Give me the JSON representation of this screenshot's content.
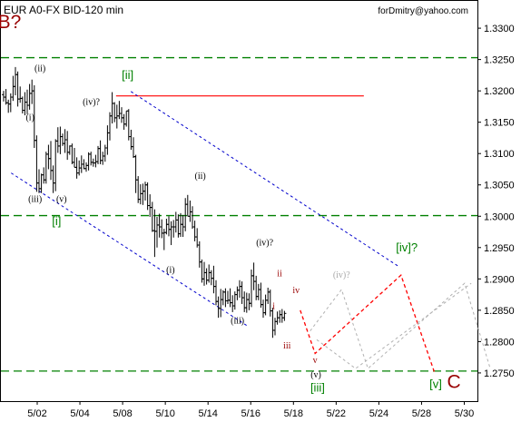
{
  "header": {
    "symbol_title": "EUR A0-FX BID-120 min",
    "author_credit": "forDmitry@yahoo.com"
  },
  "chart_data": {
    "type": "bar",
    "title": "EUR A0-FX BID-120 min",
    "ylim": [
      1.2705,
      1.3345
    ],
    "yticks": [
      "1.3300",
      "1.3250",
      "1.3200",
      "1.3150",
      "1.3100",
      "1.3050",
      "1.3000",
      "1.2950",
      "1.2900",
      "1.2850",
      "1.2800",
      "1.2750"
    ],
    "xticks": [
      "5/02",
      "5/04",
      "5/08",
      "5/10",
      "5/14",
      "5/16",
      "5/18",
      "5/22",
      "5/24",
      "5/28",
      "5/30"
    ],
    "colors": {
      "price_bars": "#000000",
      "support_lines": "#008000",
      "channel_lines": "#0000cc",
      "resistance_line": "#ff0000",
      "forecast_primary": "#ff0000",
      "forecast_alternates": "#b0b0b0",
      "wave_labels_green": "#008000",
      "wave_labels_dark_red": "#990000"
    },
    "levels": {
      "upper_support": 1.3253,
      "middle_support": 1.3001,
      "lower_support": 1.2753,
      "resistance": 1.3192
    },
    "wave_labels": [
      {
        "text": "B?",
        "x": 0.6,
        "y": 1.33,
        "color": "dark_red",
        "size": "large"
      },
      {
        "text": "(ii)",
        "x": 4.3,
        "y": 1.3231,
        "color": "black",
        "size": "small"
      },
      {
        "text": "(i)",
        "x": 3.1,
        "y": 1.3153,
        "color": "black",
        "size": "small"
      },
      {
        "text": "(iv)?",
        "x": 10.5,
        "y": 1.3178,
        "color": "black",
        "size": "small"
      },
      {
        "text": "(iii)",
        "x": 3.7,
        "y": 1.3023,
        "color": "black",
        "size": "small"
      },
      {
        "text": "(v)",
        "x": 6.9,
        "y": 1.3023,
        "color": "black",
        "size": "small"
      },
      {
        "text": "[i]",
        "x": 6.3,
        "y": 1.2986,
        "color": "green",
        "size": "medium"
      },
      {
        "text": "[ii]",
        "x": 14.9,
        "y": 1.3219,
        "color": "green",
        "size": "medium"
      },
      {
        "text": "(ii)",
        "x": 23.7,
        "y": 1.306,
        "color": "black",
        "size": "small"
      },
      {
        "text": "(i)",
        "x": 20.1,
        "y": 1.291,
        "color": "black",
        "size": "small"
      },
      {
        "text": "(iv)?",
        "x": 31.5,
        "y": 1.2953,
        "color": "black",
        "size": "small"
      },
      {
        "text": "(iii)",
        "x": 28.2,
        "y": 1.2829,
        "color": "black",
        "size": "small"
      },
      {
        "text": "ii",
        "x": 33.3,
        "y": 1.2904,
        "color": "dark_red",
        "size": "small"
      },
      {
        "text": "iv",
        "x": 35.3,
        "y": 1.2877,
        "color": "dark_red",
        "size": "small"
      },
      {
        "text": "i",
        "x": 32.6,
        "y": 1.2852,
        "color": "dark_red",
        "size": "small"
      },
      {
        "text": "iii",
        "x": 34.2,
        "y": 1.2789,
        "color": "dark_red",
        "size": "small"
      },
      {
        "text": "v",
        "x": 37.6,
        "y": 1.2766,
        "color": "dark_red",
        "size": "small"
      },
      {
        "text": "(v)",
        "x": 37.7,
        "y": 1.2743,
        "color": "black",
        "size": "small"
      },
      {
        "text": "[iii]",
        "x": 37.9,
        "y": 1.272,
        "color": "green",
        "size": "medium"
      },
      {
        "text": "(iv)?",
        "x": 40.8,
        "y": 1.2902,
        "color": "grey",
        "size": "small"
      },
      {
        "text": "[iv]?",
        "x": 48.7,
        "y": 1.2944,
        "color": "green",
        "size": "medium"
      },
      {
        "text": "[v]",
        "x": 52.2,
        "y": 1.2726,
        "color": "green",
        "size": "medium"
      },
      {
        "text": "C",
        "x": 54.4,
        "y": 1.2726,
        "color": "dark_red",
        "size": "large"
      }
    ],
    "forecast_paths": [
      {
        "style": "primary",
        "points": [
          [
            35.8,
            1.285
          ],
          [
            37.6,
            1.2781
          ],
          [
            48.0,
            1.2906
          ],
          [
            52.1,
            1.2749
          ]
        ]
      },
      {
        "style": "alternate",
        "points": [
          [
            37.0,
            1.2817
          ],
          [
            40.8,
            1.2883
          ],
          [
            44.0,
            1.2757
          ],
          [
            55.7,
            1.2893
          ],
          [
            58.8,
            1.2757
          ]
        ]
      },
      {
        "style": "alternate",
        "points": [
          [
            37.8,
            1.2803
          ],
          [
            42.5,
            1.2757
          ],
          [
            56.5,
            1.2893
          ]
        ]
      }
    ],
    "channel_lines": [
      {
        "points": [
          [
            0.8,
            1.3069
          ],
          [
            29.4,
            1.2825
          ]
        ]
      },
      {
        "points": [
          [
            15.3,
            1.3199
          ],
          [
            47.7,
            1.292
          ]
        ]
      }
    ],
    "series": [
      {
        "ohlc": [
          [
            1.3194,
            1.32,
            1.3183,
            1.319
          ],
          [
            1.319,
            1.3203,
            1.3178,
            1.3181
          ],
          [
            1.3181,
            1.3186,
            1.3165,
            1.3179
          ],
          [
            1.3179,
            1.3196,
            1.3166,
            1.319
          ],
          [
            1.319,
            1.3224,
            1.3184,
            1.3207
          ],
          [
            1.3207,
            1.3238,
            1.3193,
            1.3226
          ],
          [
            1.3226,
            1.3231,
            1.3175,
            1.3187
          ],
          [
            1.3187,
            1.3207,
            1.3181,
            1.3188
          ],
          [
            1.3188,
            1.3191,
            1.3164,
            1.3169
          ],
          [
            1.3169,
            1.3198,
            1.3161,
            1.3182
          ],
          [
            1.3182,
            1.3202,
            1.3163,
            1.3177
          ],
          [
            1.3177,
            1.3211,
            1.317,
            1.3196
          ],
          [
            1.3196,
            1.3218,
            1.3179,
            1.32
          ],
          [
            1.32,
            1.3209,
            1.3109,
            1.3121
          ],
          [
            1.3121,
            1.3129,
            1.3039,
            1.3053
          ],
          [
            1.3053,
            1.3075,
            1.3037,
            1.3044
          ],
          [
            1.3044,
            1.3068,
            1.3037,
            1.3066
          ],
          [
            1.3066,
            1.3078,
            1.3052,
            1.3058
          ],
          [
            1.3058,
            1.3103,
            1.3052,
            1.3099
          ],
          [
            1.3099,
            1.3114,
            1.3075,
            1.3092
          ],
          [
            1.3092,
            1.312,
            1.3058,
            1.3073
          ],
          [
            1.3073,
            1.3081,
            1.3037,
            1.3053
          ],
          [
            1.3053,
            1.3123,
            1.304,
            1.312
          ],
          [
            1.312,
            1.3142,
            1.3101,
            1.3112
          ],
          [
            1.3112,
            1.3143,
            1.3099,
            1.3127
          ],
          [
            1.3127,
            1.3132,
            1.3112,
            1.3116
          ],
          [
            1.3116,
            1.3139,
            1.3101,
            1.3122
          ],
          [
            1.3122,
            1.3136,
            1.309,
            1.3102
          ],
          [
            1.3102,
            1.3113,
            1.3098,
            1.3112
          ],
          [
            1.3112,
            1.3116,
            1.3083,
            1.3086
          ],
          [
            1.3086,
            1.3109,
            1.3078,
            1.3078
          ],
          [
            1.3078,
            1.3094,
            1.306,
            1.3069
          ],
          [
            1.3069,
            1.3089,
            1.3065,
            1.3077
          ],
          [
            1.3077,
            1.3097,
            1.3069,
            1.3083
          ],
          [
            1.3083,
            1.3091,
            1.3075,
            1.3076
          ],
          [
            1.3076,
            1.3086,
            1.3071,
            1.3081
          ],
          [
            1.3081,
            1.3102,
            1.3073,
            1.3099
          ],
          [
            1.3099,
            1.3103,
            1.3081,
            1.3086
          ],
          [
            1.3086,
            1.3092,
            1.3079,
            1.3085
          ],
          [
            1.3085,
            1.3098,
            1.3078,
            1.3087
          ],
          [
            1.3087,
            1.3112,
            1.3083,
            1.3108
          ],
          [
            1.3108,
            1.3121,
            1.3083,
            1.3089
          ],
          [
            1.3089,
            1.3103,
            1.3082,
            1.3096
          ],
          [
            1.3096,
            1.3114,
            1.3087,
            1.3109
          ],
          [
            1.3109,
            1.3145,
            1.3098,
            1.3133
          ],
          [
            1.3133,
            1.3166,
            1.3121,
            1.316
          ],
          [
            1.316,
            1.3198,
            1.3148,
            1.318
          ],
          [
            1.318,
            1.3182,
            1.315,
            1.3157
          ],
          [
            1.3157,
            1.3178,
            1.314,
            1.316
          ],
          [
            1.316,
            1.3184,
            1.3155,
            1.3164
          ],
          [
            1.3164,
            1.3174,
            1.3149,
            1.3157
          ],
          [
            1.3157,
            1.3163,
            1.3138,
            1.3147
          ],
          [
            1.3147,
            1.3168,
            1.3143,
            1.3168
          ],
          [
            1.3168,
            1.3171,
            1.3121,
            1.3127
          ],
          [
            1.3127,
            1.3138,
            1.3106,
            1.3111
          ],
          [
            1.3111,
            1.3126,
            1.3093,
            1.3095
          ],
          [
            1.3095,
            1.3098,
            1.3037,
            1.3058
          ],
          [
            1.3058,
            1.3064,
            1.3021,
            1.3027
          ],
          [
            1.3027,
            1.3051,
            1.3019,
            1.3036
          ],
          [
            1.3036,
            1.3052,
            1.3018,
            1.304
          ],
          [
            1.304,
            1.3055,
            1.3025,
            1.305
          ],
          [
            1.305,
            1.3054,
            1.301,
            1.3017
          ],
          [
            1.3017,
            1.3035,
            1.2999,
            1.3014
          ],
          [
            1.3014,
            1.3023,
            1.2975,
            1.2977
          ],
          [
            1.2977,
            1.3011,
            1.2935,
            1.2976
          ],
          [
            1.2976,
            1.2999,
            1.295,
            1.2986
          ],
          [
            1.2986,
            1.3004,
            1.2966,
            1.2983
          ],
          [
            1.2983,
            1.2995,
            1.2965,
            1.2973
          ],
          [
            1.2973,
            1.298,
            1.2946,
            1.2974
          ],
          [
            1.2974,
            1.2996,
            1.2971,
            1.2987
          ],
          [
            1.2987,
            1.3,
            1.2968,
            1.2979
          ],
          [
            1.2979,
            1.2992,
            1.2954,
            1.2983
          ],
          [
            1.2983,
            1.2994,
            1.2966,
            1.2983
          ],
          [
            1.2983,
            1.3007,
            1.2974,
            1.2994
          ],
          [
            1.2994,
            1.3003,
            1.2966,
            1.2972
          ],
          [
            1.2972,
            1.3005,
            1.2967,
            1.2987
          ],
          [
            1.2987,
            1.3002,
            1.2967,
            1.2983
          ],
          [
            1.2983,
            1.3029,
            1.2976,
            1.3019
          ],
          [
            1.3019,
            1.3034,
            1.3,
            1.3
          ],
          [
            1.3,
            1.3025,
            1.2991,
            1.3007
          ],
          [
            1.3007,
            1.3016,
            1.298,
            1.2983
          ],
          [
            1.2983,
            1.2993,
            1.296,
            1.2967
          ],
          [
            1.2967,
            1.2981,
            1.295,
            1.2954
          ],
          [
            1.2954,
            1.296,
            1.2918,
            1.2927
          ],
          [
            1.2927,
            1.2931,
            1.2894,
            1.29
          ],
          [
            1.29,
            1.2927,
            1.2889,
            1.291
          ],
          [
            1.291,
            1.2917,
            1.2891,
            1.2898
          ],
          [
            1.2898,
            1.2923,
            1.2894,
            1.291
          ],
          [
            1.291,
            1.2914,
            1.289,
            1.2901
          ],
          [
            1.2901,
            1.2921,
            1.2877,
            1.2888
          ],
          [
            1.2888,
            1.2898,
            1.2858,
            1.2864
          ],
          [
            1.2864,
            1.2872,
            1.2838,
            1.2853
          ],
          [
            1.2853,
            1.2884,
            1.2839,
            1.2867
          ],
          [
            1.2867,
            1.2882,
            1.2858,
            1.2879
          ],
          [
            1.2879,
            1.2885,
            1.2855,
            1.2865
          ],
          [
            1.2865,
            1.2881,
            1.286,
            1.2866
          ],
          [
            1.2866,
            1.2885,
            1.2855,
            1.2862
          ],
          [
            1.2862,
            1.2874,
            1.2847,
            1.2857
          ],
          [
            1.2857,
            1.288,
            1.2851,
            1.2875
          ],
          [
            1.2875,
            1.2888,
            1.2866,
            1.2882
          ],
          [
            1.2882,
            1.2898,
            1.287,
            1.2888
          ],
          [
            1.2888,
            1.2896,
            1.286,
            1.287
          ],
          [
            1.287,
            1.288,
            1.2847,
            1.2854
          ],
          [
            1.2854,
            1.2878,
            1.2846,
            1.2867
          ],
          [
            1.2867,
            1.2877,
            1.285,
            1.2861
          ],
          [
            1.2861,
            1.2915,
            1.2855,
            1.2905
          ],
          [
            1.2905,
            1.2926,
            1.2882,
            1.2896
          ],
          [
            1.2896,
            1.2905,
            1.2866,
            1.2872
          ],
          [
            1.2872,
            1.2892,
            1.2866,
            1.2883
          ],
          [
            1.2883,
            1.2894,
            1.2854,
            1.2859
          ],
          [
            1.2859,
            1.2867,
            1.2838,
            1.2846
          ],
          [
            1.2846,
            1.2875,
            1.2842,
            1.2866
          ],
          [
            1.2866,
            1.2886,
            1.286,
            1.2879
          ],
          [
            1.2879,
            1.2883,
            1.284,
            1.2849
          ],
          [
            1.2849,
            1.2854,
            1.2806,
            1.2818
          ],
          [
            1.2818,
            1.2838,
            1.281,
            1.2832
          ],
          [
            1.2832,
            1.2848,
            1.2827,
            1.2838
          ],
          [
            1.2838,
            1.285,
            1.283,
            1.2843
          ],
          [
            1.2843,
            1.2852,
            1.283,
            1.2838
          ],
          [
            1.2838,
            1.2849,
            1.2833,
            1.2845
          ]
        ]
      }
    ]
  }
}
